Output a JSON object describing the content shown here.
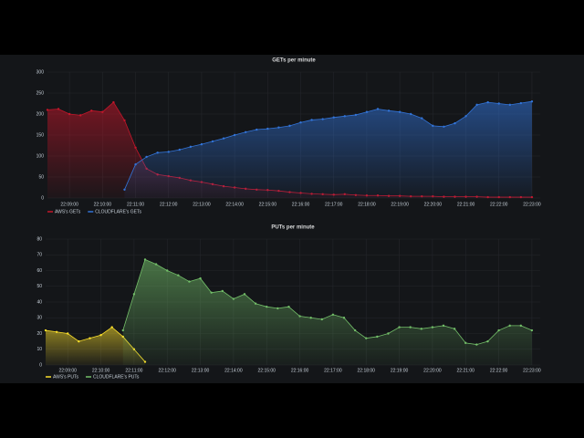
{
  "chart_data": [
    {
      "type": "line",
      "title": "GETs per minute",
      "x": [
        79700,
        79720,
        79740,
        79760,
        79780,
        79800,
        79820,
        79840,
        79860,
        79880,
        79900,
        79920,
        79940,
        79960,
        79980,
        80000,
        80020,
        80040,
        80060,
        80080,
        80100,
        80120,
        80140,
        80160,
        80180,
        80200,
        80220,
        80240,
        80260,
        80280,
        80300,
        80320,
        80340,
        80360,
        80380,
        80400,
        80420,
        80440,
        80460,
        80480,
        80500,
        80520,
        80540,
        80560,
        80580
      ],
      "series": [
        {
          "name": "AWS's GETs",
          "color": "#c4162a",
          "values": [
            210,
            212,
            200,
            197,
            208,
            205,
            228,
            185,
            120,
            70,
            56,
            52,
            48,
            42,
            38,
            33,
            28,
            25,
            22,
            20,
            19,
            17,
            14,
            12,
            10,
            9,
            8,
            9,
            7,
            6,
            6,
            5,
            5,
            4,
            4,
            4,
            3,
            3,
            3,
            3,
            2,
            2,
            2,
            2,
            2
          ]
        },
        {
          "name": "CLOUDFLARE's GETs",
          "color": "#3274d9",
          "values": [
            null,
            null,
            null,
            null,
            null,
            null,
            null,
            20,
            80,
            98,
            108,
            110,
            115,
            122,
            128,
            135,
            142,
            150,
            157,
            163,
            165,
            168,
            172,
            180,
            186,
            188,
            192,
            195,
            198,
            205,
            212,
            208,
            205,
            200,
            190,
            172,
            170,
            178,
            195,
            222,
            228,
            225,
            222,
            226,
            230
          ]
        }
      ],
      "xlim": [
        79700,
        80595
      ],
      "xticks": [
        {
          "value": 79740,
          "label": "22:09:00"
        },
        {
          "value": 79800,
          "label": "22:10:00"
        },
        {
          "value": 79860,
          "label": "22:11:00"
        },
        {
          "value": 79920,
          "label": "22:12:00"
        },
        {
          "value": 79980,
          "label": "22:13:00"
        },
        {
          "value": 80040,
          "label": "22:14:00"
        },
        {
          "value": 80100,
          "label": "22:15:00"
        },
        {
          "value": 80160,
          "label": "22:16:00"
        },
        {
          "value": 80220,
          "label": "22:17:00"
        },
        {
          "value": 80280,
          "label": "22:18:00"
        },
        {
          "value": 80340,
          "label": "22:19:00"
        },
        {
          "value": 80400,
          "label": "22:20:00"
        },
        {
          "value": 80460,
          "label": "22:21:00"
        },
        {
          "value": 80520,
          "label": "22:22:00"
        },
        {
          "value": 80580,
          "label": "22:23:00"
        }
      ],
      "ylim": [
        0,
        300
      ],
      "yticks": [
        0,
        50,
        100,
        150,
        200,
        250,
        300
      ],
      "grid": true
    },
    {
      "type": "line",
      "title": "PUTs per minute",
      "x": [
        79700,
        79720,
        79740,
        79760,
        79780,
        79800,
        79820,
        79840,
        79860,
        79880,
        79900,
        79920,
        79940,
        79960,
        79980,
        80000,
        80020,
        80040,
        80060,
        80080,
        80100,
        80120,
        80140,
        80160,
        80180,
        80200,
        80220,
        80240,
        80260,
        80280,
        80300,
        80320,
        80340,
        80360,
        80380,
        80400,
        80420,
        80440,
        80460,
        80480,
        80500,
        80520,
        80540,
        80560,
        80580
      ],
      "series": [
        {
          "name": "AWS's PUTs",
          "color": "#fade2a",
          "values": [
            22,
            21,
            20,
            15,
            17,
            19,
            24,
            18,
            10,
            2,
            null,
            null,
            null,
            null,
            null,
            null,
            null,
            null,
            null,
            null,
            null,
            null,
            null,
            null,
            null,
            null,
            null,
            null,
            null,
            null,
            null,
            null,
            null,
            null,
            null,
            null,
            null,
            null,
            null,
            null,
            null,
            null,
            null,
            null,
            null
          ]
        },
        {
          "name": "CLOUDFLARE's PUTs",
          "color": "#73bf69",
          "values": [
            null,
            null,
            null,
            null,
            null,
            null,
            null,
            22,
            45,
            67,
            64,
            60,
            57,
            53,
            55,
            46,
            47,
            42,
            45,
            39,
            37,
            36,
            37,
            31,
            30,
            29,
            32,
            30,
            22,
            17,
            18,
            20,
            24,
            24,
            23,
            24,
            25,
            23,
            14,
            13,
            15,
            22,
            25,
            25,
            22
          ]
        }
      ],
      "xlim": [
        79700,
        80595
      ],
      "xticks": [
        {
          "value": 79740,
          "label": "22:09:00"
        },
        {
          "value": 79800,
          "label": "22:10:00"
        },
        {
          "value": 79860,
          "label": "22:11:00"
        },
        {
          "value": 79920,
          "label": "22:12:00"
        },
        {
          "value": 79980,
          "label": "22:13:00"
        },
        {
          "value": 80040,
          "label": "22:14:00"
        },
        {
          "value": 80100,
          "label": "22:15:00"
        },
        {
          "value": 80160,
          "label": "22:16:00"
        },
        {
          "value": 80220,
          "label": "22:17:00"
        },
        {
          "value": 80280,
          "label": "22:18:00"
        },
        {
          "value": 80340,
          "label": "22:19:00"
        },
        {
          "value": 80400,
          "label": "22:20:00"
        },
        {
          "value": 80460,
          "label": "22:21:00"
        },
        {
          "value": 80520,
          "label": "22:22:00"
        },
        {
          "value": 80580,
          "label": "22:23:00"
        }
      ],
      "ylim": [
        0,
        80
      ],
      "yticks": [
        0,
        10,
        20,
        30,
        40,
        50,
        60,
        70,
        80
      ],
      "grid": true
    }
  ]
}
